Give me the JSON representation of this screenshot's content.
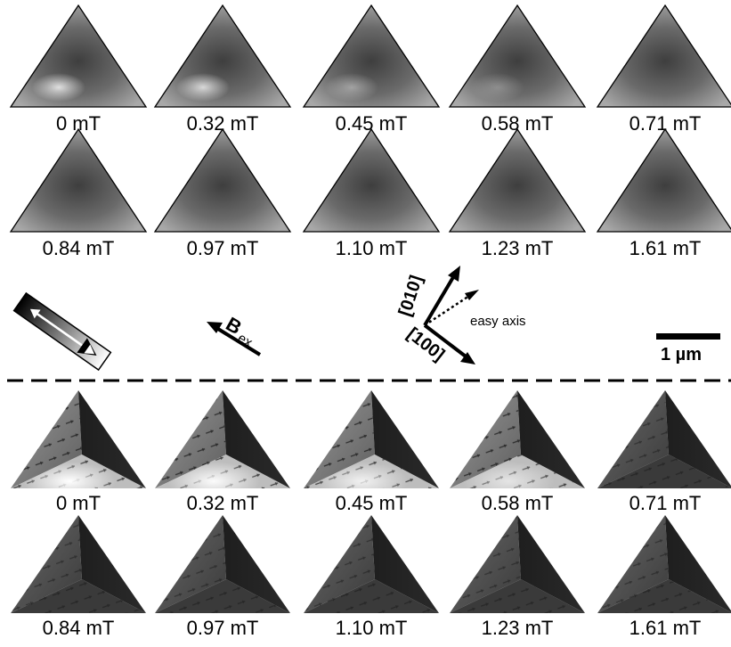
{
  "experiment": {
    "labels": [
      "0 mT",
      "0.32 mT",
      "0.45 mT",
      "0.58 mT",
      "0.71 mT",
      "0.84 mT",
      "0.97 mT",
      "1.10 mT",
      "1.23 mT",
      "1.61 mT"
    ]
  },
  "legend": {
    "field_symbol": "B",
    "field_subscript": "ex",
    "axis_010": "[010]",
    "axis_100": "[100]",
    "easy_axis": "easy axis",
    "scale_bar": "1 µm"
  },
  "simulation": {
    "labels": [
      "0 mT",
      "0.32 mT",
      "0.45 mT",
      "0.58 mT",
      "0.71 mT",
      "0.84 mT",
      "0.97 mT",
      "1.10 mT",
      "1.23 mT",
      "1.61 mT"
    ]
  },
  "colors": {
    "exp_gray": "#8a8a8a",
    "exp_dark": "#4a4a4a",
    "sim_dark": "#303030",
    "sim_light": "#e8e8e8"
  }
}
